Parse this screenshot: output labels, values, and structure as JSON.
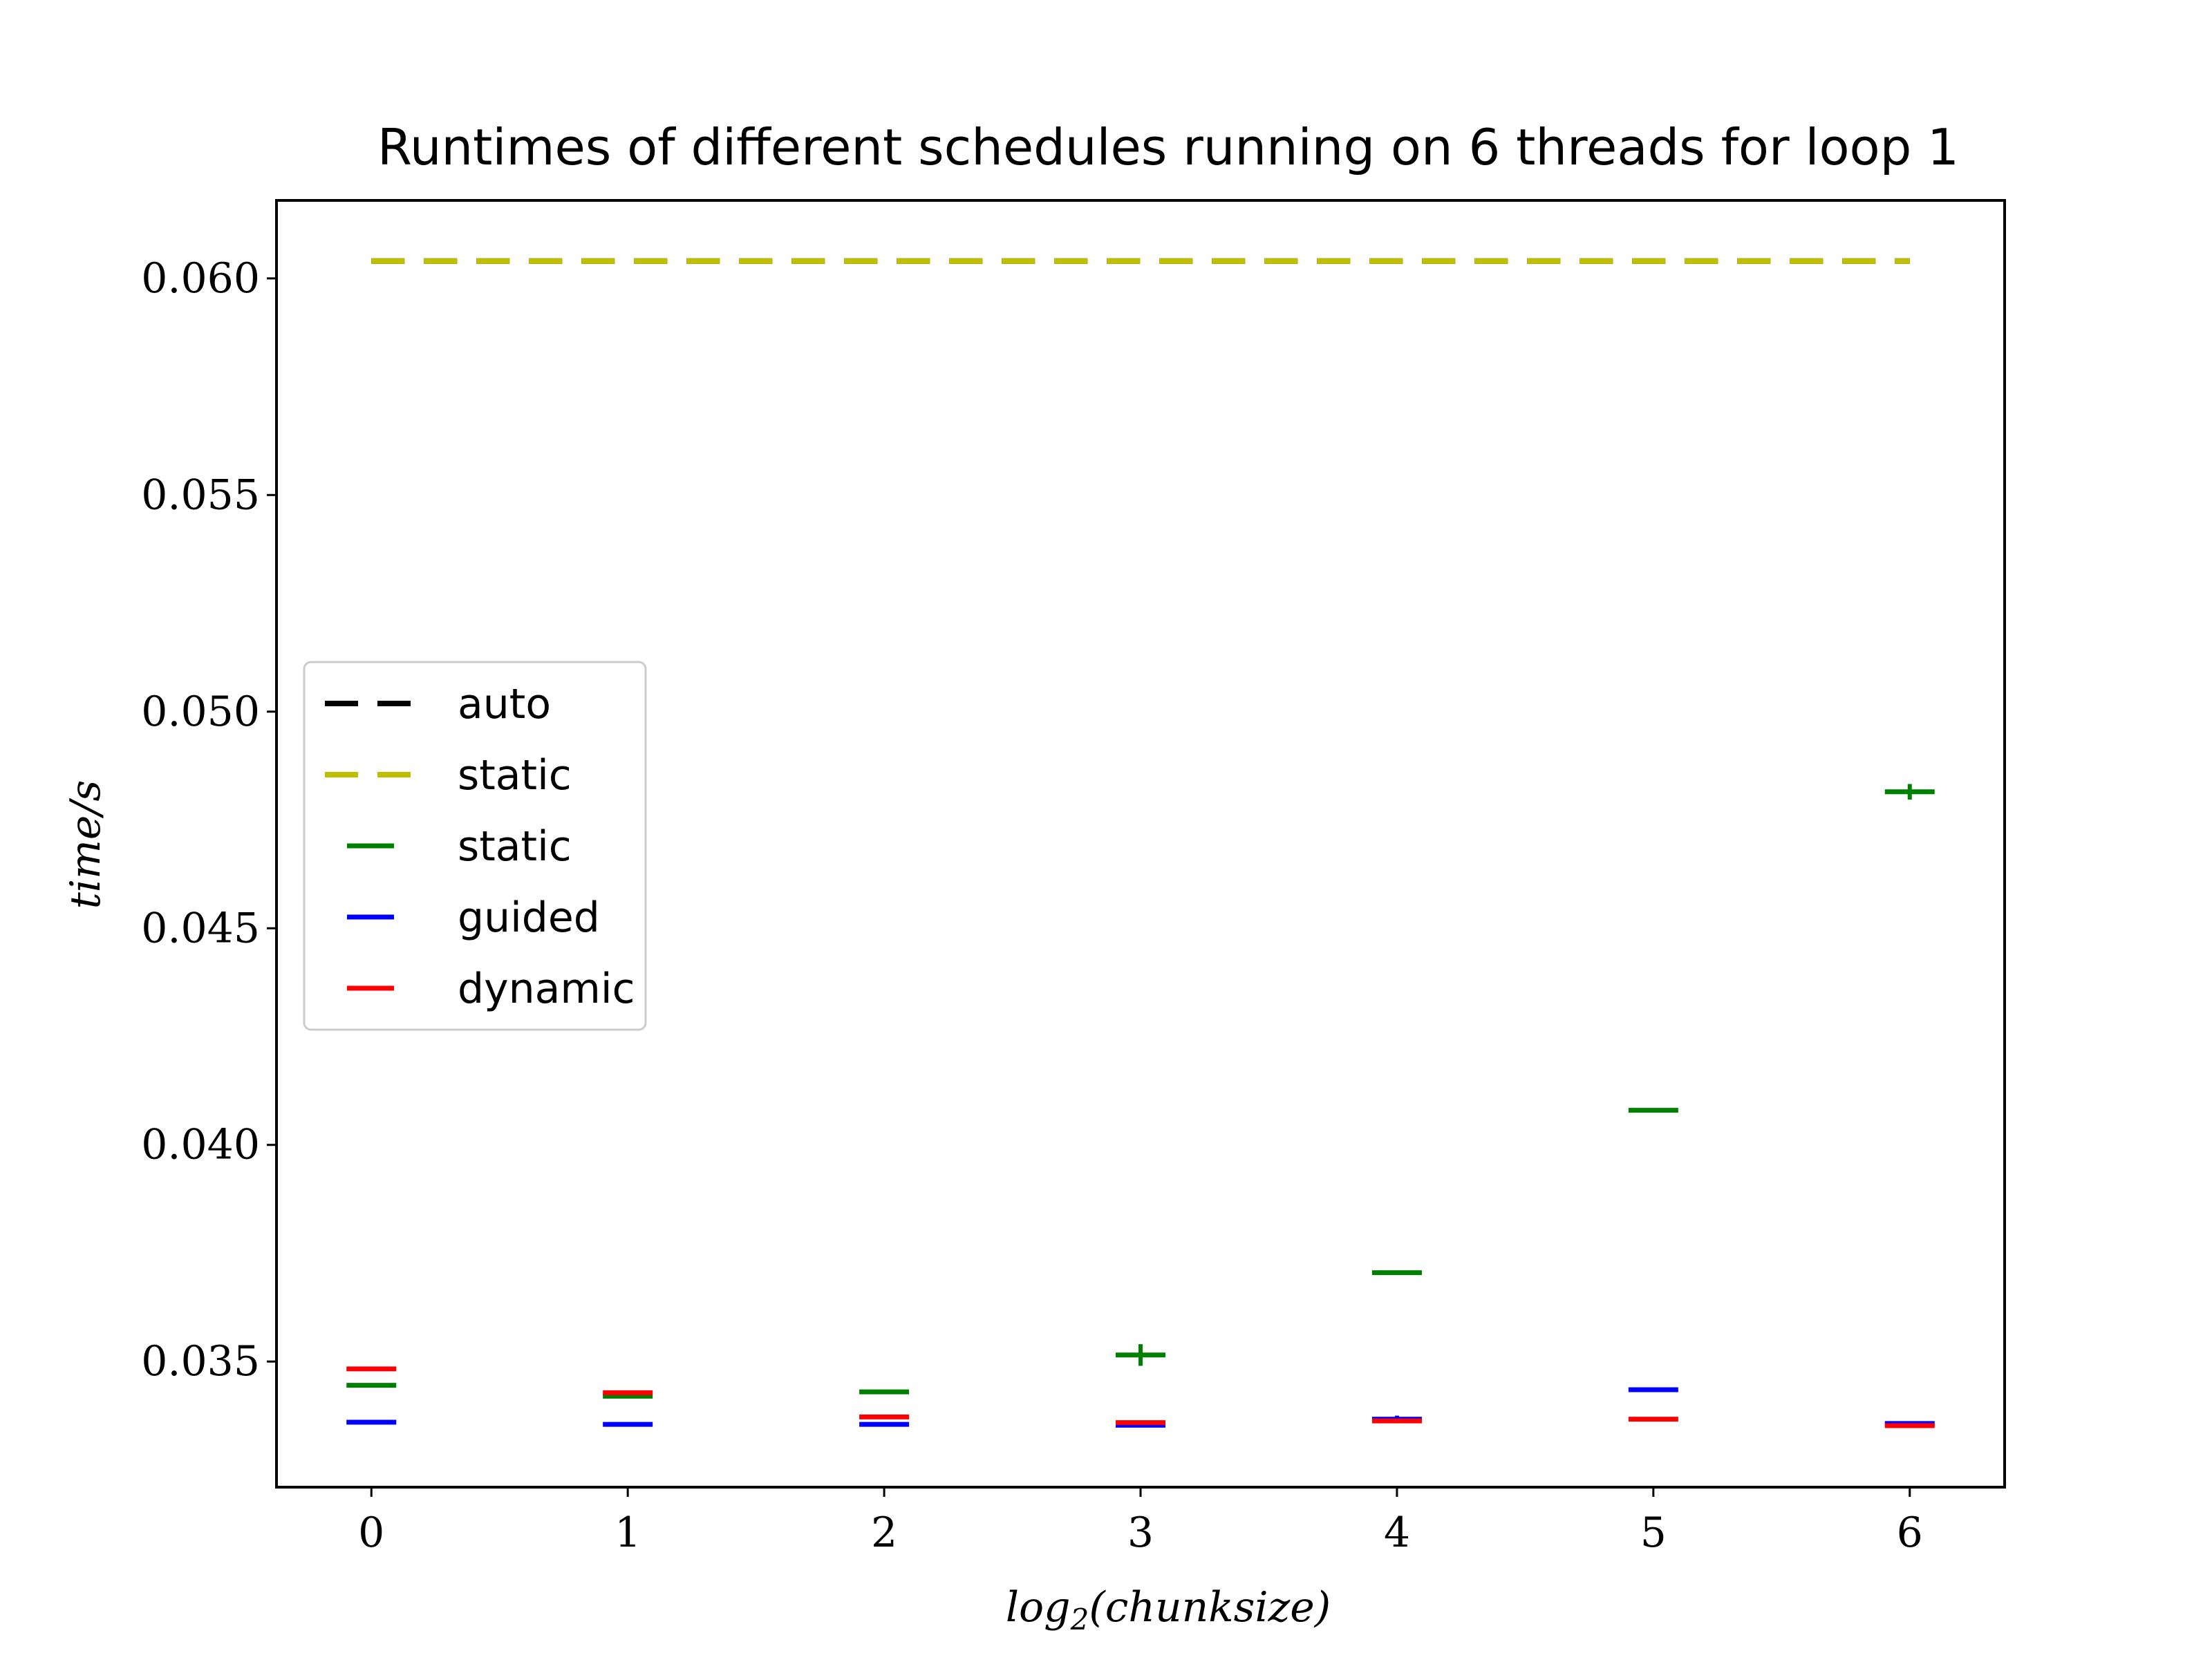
{
  "chart_data": {
    "type": "scatter",
    "title": "Runtimes of different schedules running on 6 threads for loop 1",
    "xlabel": "log2(chunksize)",
    "xlabel_base": "log",
    "xlabel_sub": "2",
    "xlabel_rest": "(chunksize)",
    "ylabel": "time/s",
    "xlim": [
      -0.37,
      6.37
    ],
    "ylim": [
      0.0321,
      0.0618
    ],
    "x_ticks": [
      0,
      1,
      2,
      3,
      4,
      5,
      6
    ],
    "y_ticks": [
      0.035,
      0.04,
      0.045,
      0.05,
      0.055,
      0.06
    ],
    "y_tick_labels": [
      "0.035",
      "0.040",
      "0.045",
      "0.050",
      "0.055",
      "0.060"
    ],
    "grid": false,
    "legend_position": "center-left",
    "reference_lines": [
      {
        "name": "auto",
        "value": 0.0604,
        "color": "#000000",
        "style": "dashed"
      },
      {
        "name": "static",
        "value": 0.0604,
        "color": "#bfbf00",
        "style": "dashed"
      }
    ],
    "series": [
      {
        "name": "static",
        "color": "#008000",
        "x": [
          0,
          1,
          2,
          3,
          4,
          5,
          6
        ],
        "values": [
          0.03445,
          0.0342,
          0.0343,
          0.03515,
          0.03705,
          0.0408,
          0.04815
        ],
        "errors": [
          4e-05,
          2e-05,
          2e-05,
          0.00025,
          2e-05,
          2e-05,
          0.00018
        ]
      },
      {
        "name": "guided",
        "color": "#0000ff",
        "x": [
          0,
          1,
          2,
          3,
          4,
          5,
          6
        ],
        "values": [
          0.0336,
          0.03355,
          0.03355,
          0.03353,
          0.03367,
          0.03435,
          0.03357
        ],
        "errors": [
          1e-05,
          1e-05,
          1e-05,
          1e-05,
          8e-05,
          1e-05,
          1e-05
        ]
      },
      {
        "name": "dynamic",
        "color": "#ff0000",
        "x": [
          0,
          1,
          2,
          3,
          4,
          5,
          6
        ],
        "values": [
          0.03483,
          0.03428,
          0.03372,
          0.03359,
          0.03363,
          0.03367,
          0.03352
        ],
        "errors": [
          1e-05,
          3e-05,
          1e-05,
          1e-05,
          1e-05,
          1e-05,
          1e-05
        ]
      }
    ]
  }
}
